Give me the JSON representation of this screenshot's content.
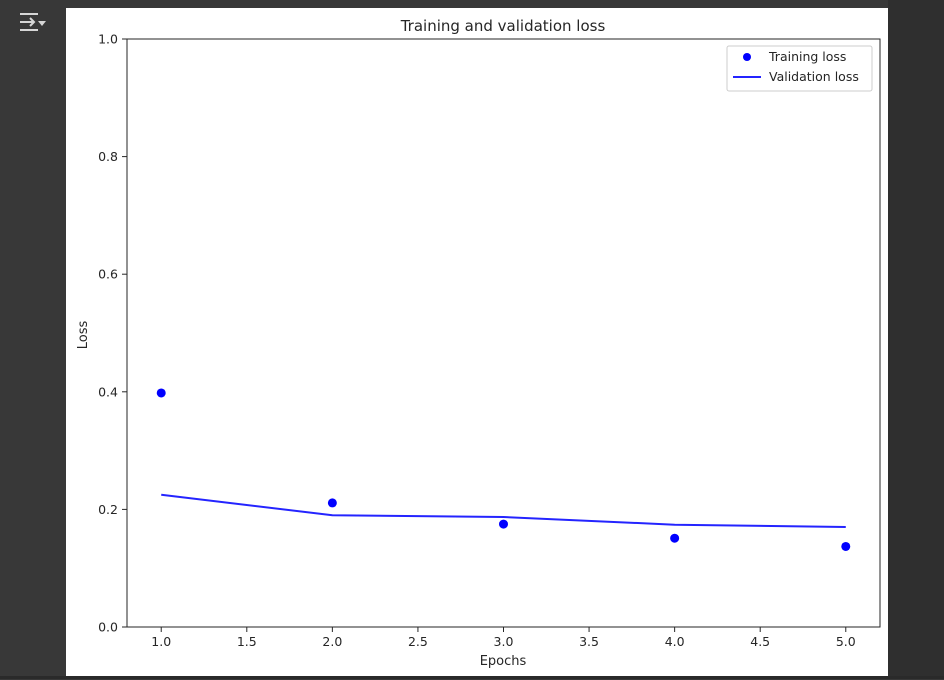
{
  "output_toggle": {
    "icon": "collapse-output-icon"
  },
  "chart_data": {
    "type": "line",
    "title": "Training and validation loss",
    "xlabel": "Epochs",
    "ylabel": "Loss",
    "xlim": [
      0.8,
      5.2
    ],
    "ylim": [
      0.0,
      1.0
    ],
    "xticks": [
      "1.0",
      "1.5",
      "2.0",
      "2.5",
      "3.0",
      "3.5",
      "4.0",
      "4.5",
      "5.0"
    ],
    "yticks": [
      "0.0",
      "0.2",
      "0.4",
      "0.6",
      "0.8",
      "1.0"
    ],
    "x": [
      1,
      2,
      3,
      4,
      5
    ],
    "legend_position": "top-right",
    "grid": false,
    "series": [
      {
        "name": "Training loss",
        "style": "points",
        "color": "#0000ff",
        "values": [
          0.398,
          0.211,
          0.175,
          0.151,
          0.137
        ]
      },
      {
        "name": "Validation loss",
        "style": "line",
        "color": "#2424ff",
        "values": [
          0.225,
          0.19,
          0.187,
          0.174,
          0.17
        ]
      }
    ]
  }
}
